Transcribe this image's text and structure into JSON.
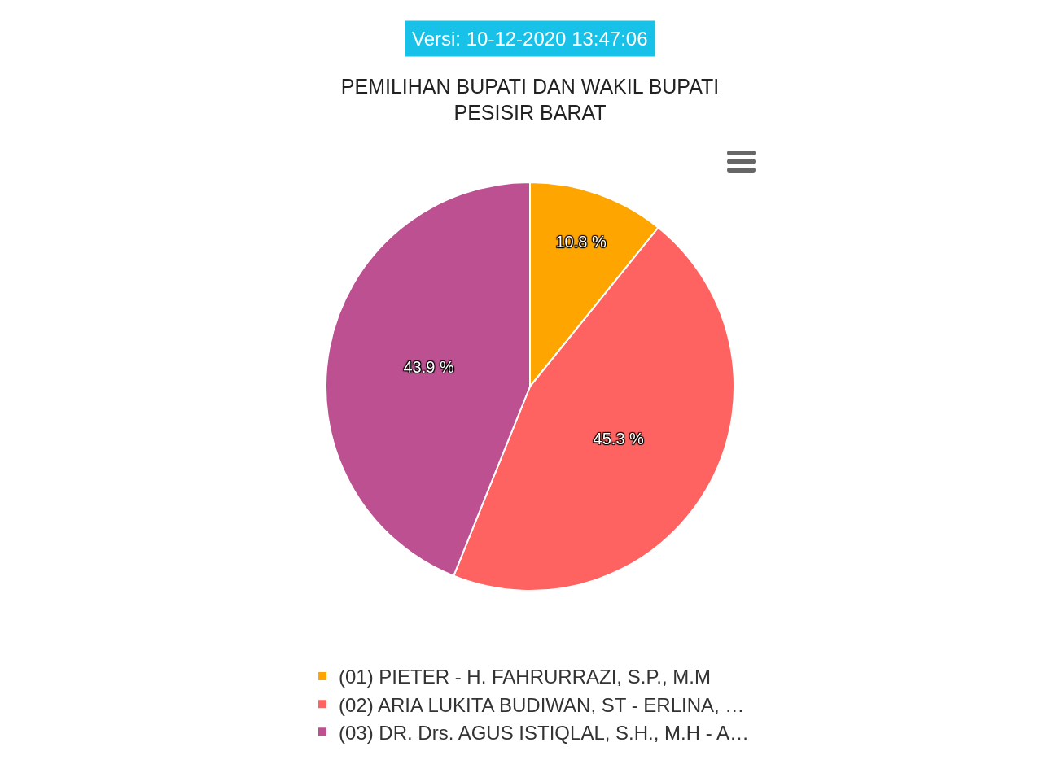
{
  "chart_data": {
    "type": "pie",
    "title": "PEMILIHAN BUPATI DAN WAKIL BUPATI\nPESISIR BARAT",
    "annotations": [
      "Versi: 10-12-2020 13:47:06"
    ],
    "categories": [
      "(01) PIETER - H. FAHRURRAZI, S.P., M.M",
      "(02) ARIA LUKITA BUDIWAN, ST - ERLINA, …",
      "(03) DR. Drs. AGUS ISTIQLAL, S.H., M.H - A…"
    ],
    "values": [
      10.8,
      45.3,
      43.9
    ],
    "value_labels": [
      "10.8 %",
      "45.3 %",
      "43.9 %"
    ],
    "colors": [
      "#ffa500",
      "#ff6361",
      "#bc5090"
    ],
    "legend": "bottom"
  }
}
